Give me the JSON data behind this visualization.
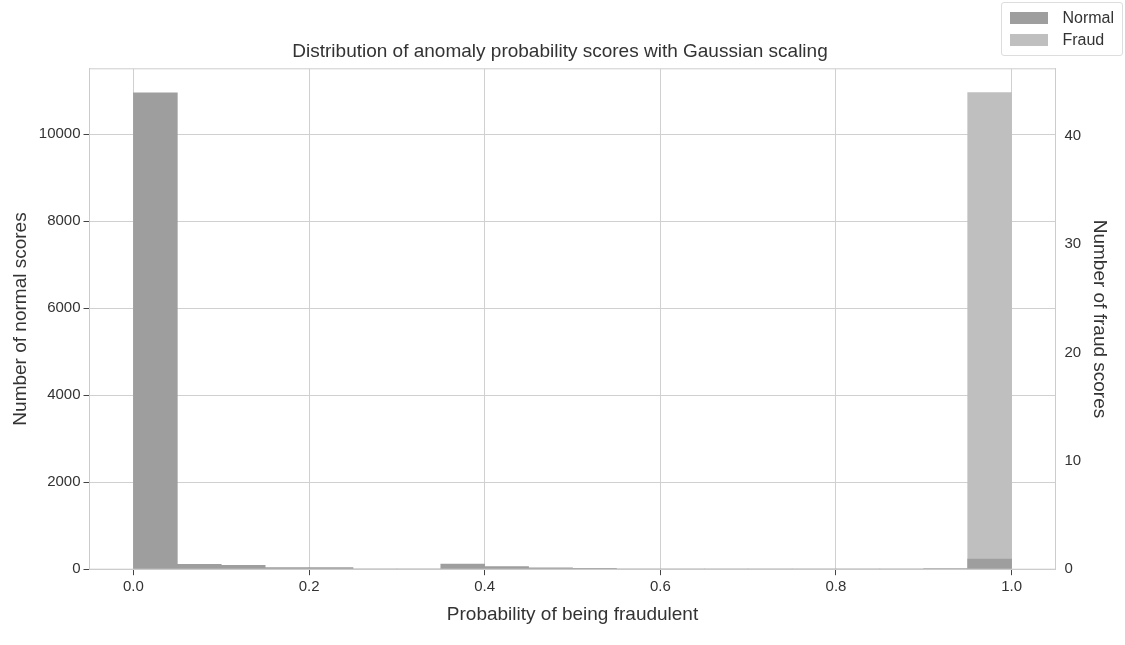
{
  "chart_data": {
    "type": "histogram",
    "title": "Distribution of anomaly probability scores with Gaussian scaling",
    "xlabel": "Probability of being fraudulent",
    "ylabel": "Number of normal scores",
    "y2label": "Number of fraud scores",
    "bins": [
      0,
      0.05,
      0.1,
      0.15,
      0.2,
      0.25,
      0.3,
      0.35,
      0.4,
      0.45,
      0.5,
      0.55,
      0.6,
      0.65,
      0.7,
      0.75,
      0.8,
      0.85,
      0.9,
      0.95,
      1.0
    ],
    "series": [
      {
        "name": "Normal",
        "color": "#9e9e9e",
        "values": [
          10950,
          110,
          90,
          40,
          40,
          0,
          0,
          120,
          60,
          30,
          20,
          0,
          0,
          0,
          0,
          0,
          0,
          0,
          10,
          230
        ]
      },
      {
        "name": "Fraud",
        "color": "#bfbfbf",
        "axis": "y2",
        "values": [
          0,
          0,
          0,
          0,
          0,
          0,
          0,
          0,
          0,
          0,
          0,
          0,
          0,
          0,
          0,
          0,
          0,
          0,
          0,
          44
        ]
      }
    ],
    "xlim": [
      -0.05,
      1.05
    ],
    "xticks": [
      {
        "value": 0,
        "label": "0.0"
      },
      0.2,
      0.4,
      0.6,
      0.8,
      {
        "value": 1,
        "label": "1.0"
      }
    ],
    "ylim": [
      0,
      11500
    ],
    "yticks": [
      0,
      2000,
      4000,
      6000,
      8000,
      10000
    ],
    "y2lim": [
      0,
      46.2
    ],
    "y2ticks": [
      0,
      10,
      20,
      30,
      40
    ],
    "grid": true,
    "legend": "top right"
  }
}
